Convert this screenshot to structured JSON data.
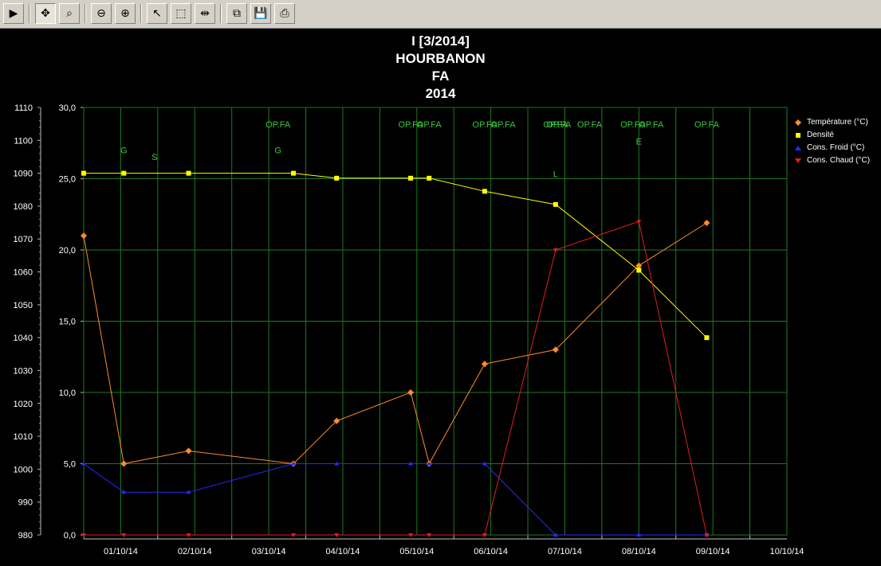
{
  "toolbar": {
    "buttons": [
      {
        "name": "play-button",
        "icon": "play-icon",
        "glyph": "▶"
      },
      {
        "name": "pan-button",
        "icon": "pan-arrows-icon",
        "glyph": "✥"
      },
      {
        "name": "zoom-area-button",
        "icon": "zoom-area-icon",
        "glyph": "⌕"
      },
      {
        "name": "zoom-out-button",
        "icon": "zoom-out-icon",
        "glyph": "⊖"
      },
      {
        "name": "zoom-in-button",
        "icon": "zoom-in-icon",
        "glyph": "⊕"
      },
      {
        "name": "select-pointer-button",
        "icon": "pointer-icon",
        "glyph": "↖"
      },
      {
        "name": "select-rect-button",
        "icon": "dotted-rect-icon",
        "glyph": "⬚"
      },
      {
        "name": "fit-width-button",
        "icon": "fit-width-icon",
        "glyph": "⇹"
      },
      {
        "name": "copy-button",
        "icon": "copy-icon",
        "glyph": "⧉"
      },
      {
        "name": "save-button",
        "icon": "floppy-disk-icon",
        "glyph": "💾"
      },
      {
        "name": "print-button",
        "icon": "printer-icon",
        "glyph": "⎙"
      }
    ]
  },
  "chart_data": {
    "type": "line",
    "title_lines": [
      "I [3/2014]",
      "HOURBANON",
      "FA",
      "2014"
    ],
    "x_axis": {
      "type": "date",
      "tick_labels": [
        "01/10/14",
        "02/10/14",
        "03/10/14",
        "04/10/14",
        "05/10/14",
        "06/10/14",
        "07/10/14",
        "08/10/14",
        "09/10/14",
        "10/10/14"
      ],
      "xlim": [
        "2014-10-01T00:00",
        "2014-10-10T12:00"
      ]
    },
    "y_axis_left": {
      "ylim": [
        980,
        1110
      ],
      "tick_labels": [
        "980",
        "990",
        "1000",
        "1010",
        "1020",
        "1030",
        "1040",
        "1050",
        "1060",
        "1070",
        "1080",
        "1090",
        "1100",
        "1110"
      ]
    },
    "y_axis_right": {
      "ylim": [
        0,
        30
      ],
      "tick_labels": [
        "0,0",
        "5,0",
        "10,0",
        "15,0",
        "20,0",
        "25,0",
        "30,0"
      ]
    },
    "grid": true,
    "legend_position": "right",
    "series": [
      {
        "name": "Température (°C)",
        "axis": "right",
        "color": "#ff8c28",
        "marker": "diamond",
        "points": [
          [
            "2014-10-01T00:00",
            21.0
          ],
          [
            "2014-10-01T13:00",
            5.0
          ],
          [
            "2014-10-02T10:00",
            5.9
          ],
          [
            "2014-10-03T20:00",
            5.0
          ],
          [
            "2014-10-04T10:00",
            8.0
          ],
          [
            "2014-10-05T10:00",
            10.0
          ],
          [
            "2014-10-05T16:00",
            5.0
          ],
          [
            "2014-10-06T10:00",
            12.0
          ],
          [
            "2014-10-07T09:00",
            13.0
          ],
          [
            "2014-10-08T12:00",
            18.9
          ],
          [
            "2014-10-09T10:00",
            21.9
          ]
        ]
      },
      {
        "name": "Densité",
        "axis": "left",
        "color": "#ffff00",
        "marker": "square",
        "points": [
          [
            "2014-10-01T00:00",
            1090
          ],
          [
            "2014-10-01T13:00",
            1090
          ],
          [
            "2014-10-02T10:00",
            1090
          ],
          [
            "2014-10-03T20:00",
            1090
          ],
          [
            "2014-10-04T10:00",
            1088.5
          ],
          [
            "2014-10-05T10:00",
            1088.5
          ],
          [
            "2014-10-05T16:00",
            1088.5
          ],
          [
            "2014-10-06T10:00",
            1084.5
          ],
          [
            "2014-10-07T09:00",
            1080.5
          ],
          [
            "2014-10-08T12:00",
            1060.5
          ],
          [
            "2014-10-09T10:00",
            1040
          ]
        ]
      },
      {
        "name": "Cons. Froid (°C)",
        "axis": "right",
        "color": "#2828ff",
        "marker": "triangle-up",
        "points": [
          [
            "2014-10-01T00:00",
            5.0
          ],
          [
            "2014-10-01T13:00",
            3.0
          ],
          [
            "2014-10-02T10:00",
            3.0
          ],
          [
            "2014-10-03T20:00",
            5.0
          ],
          [
            "2014-10-04T10:00",
            5.0
          ],
          [
            "2014-10-05T10:00",
            5.0
          ],
          [
            "2014-10-05T16:00",
            5.0
          ],
          [
            "2014-10-06T10:00",
            5.0
          ],
          [
            "2014-10-07T09:00",
            0.0
          ],
          [
            "2014-10-08T12:00",
            0.0
          ],
          [
            "2014-10-09T10:00",
            0.0
          ]
        ]
      },
      {
        "name": "Cons. Chaud (°C)",
        "axis": "right",
        "color": "#e01e1e",
        "marker": "triangle-down",
        "points": [
          [
            "2014-10-01T00:00",
            0.0
          ],
          [
            "2014-10-01T13:00",
            0.0
          ],
          [
            "2014-10-02T10:00",
            0.0
          ],
          [
            "2014-10-03T20:00",
            0.0
          ],
          [
            "2014-10-04T10:00",
            0.0
          ],
          [
            "2014-10-05T10:00",
            0.0
          ],
          [
            "2014-10-05T16:00",
            0.0
          ],
          [
            "2014-10-06T10:00",
            0.0
          ],
          [
            "2014-10-07T09:00",
            20.0
          ],
          [
            "2014-10-08T12:00",
            22.0
          ],
          [
            "2014-10-09T10:00",
            0.0
          ]
        ]
      }
    ],
    "annotations": [
      {
        "text": "G",
        "x": "2014-10-01T13:00",
        "y": 26.8
      },
      {
        "text": "S",
        "x": "2014-10-01T23:00",
        "y": 26.3
      },
      {
        "text": "OP.FA",
        "x": "2014-10-03T15:00",
        "y": 28.6
      },
      {
        "text": "G",
        "x": "2014-10-03T15:00",
        "y": 26.8
      },
      {
        "text": "OP.FA",
        "x": "2014-10-05T10:00",
        "y": 28.6
      },
      {
        "text": "OP.FA",
        "x": "2014-10-05T16:00",
        "y": 28.6
      },
      {
        "text": "OP.FA",
        "x": "2014-10-06T10:00",
        "y": 28.6
      },
      {
        "text": "OP.FA",
        "x": "2014-10-06T16:00",
        "y": 28.6
      },
      {
        "text": "OP.FA",
        "x": "2014-10-07T09:00",
        "y": 28.6
      },
      {
        "text": "OP.FA",
        "x": "2014-10-07T10:00",
        "y": 28.6
      },
      {
        "text": "OP.FA",
        "x": "2014-10-07T20:00",
        "y": 28.6
      },
      {
        "text": "OP.FA",
        "x": "2014-10-08T10:00",
        "y": 28.6
      },
      {
        "text": "OP.FA",
        "x": "2014-10-08T16:00",
        "y": 28.6
      },
      {
        "text": "E",
        "x": "2014-10-08T12:00",
        "y": 27.4
      },
      {
        "text": "OP.FA",
        "x": "2014-10-09T10:00",
        "y": 28.6
      },
      {
        "text": "L",
        "x": "2014-10-07T09:00",
        "y": 25.1
      }
    ]
  }
}
